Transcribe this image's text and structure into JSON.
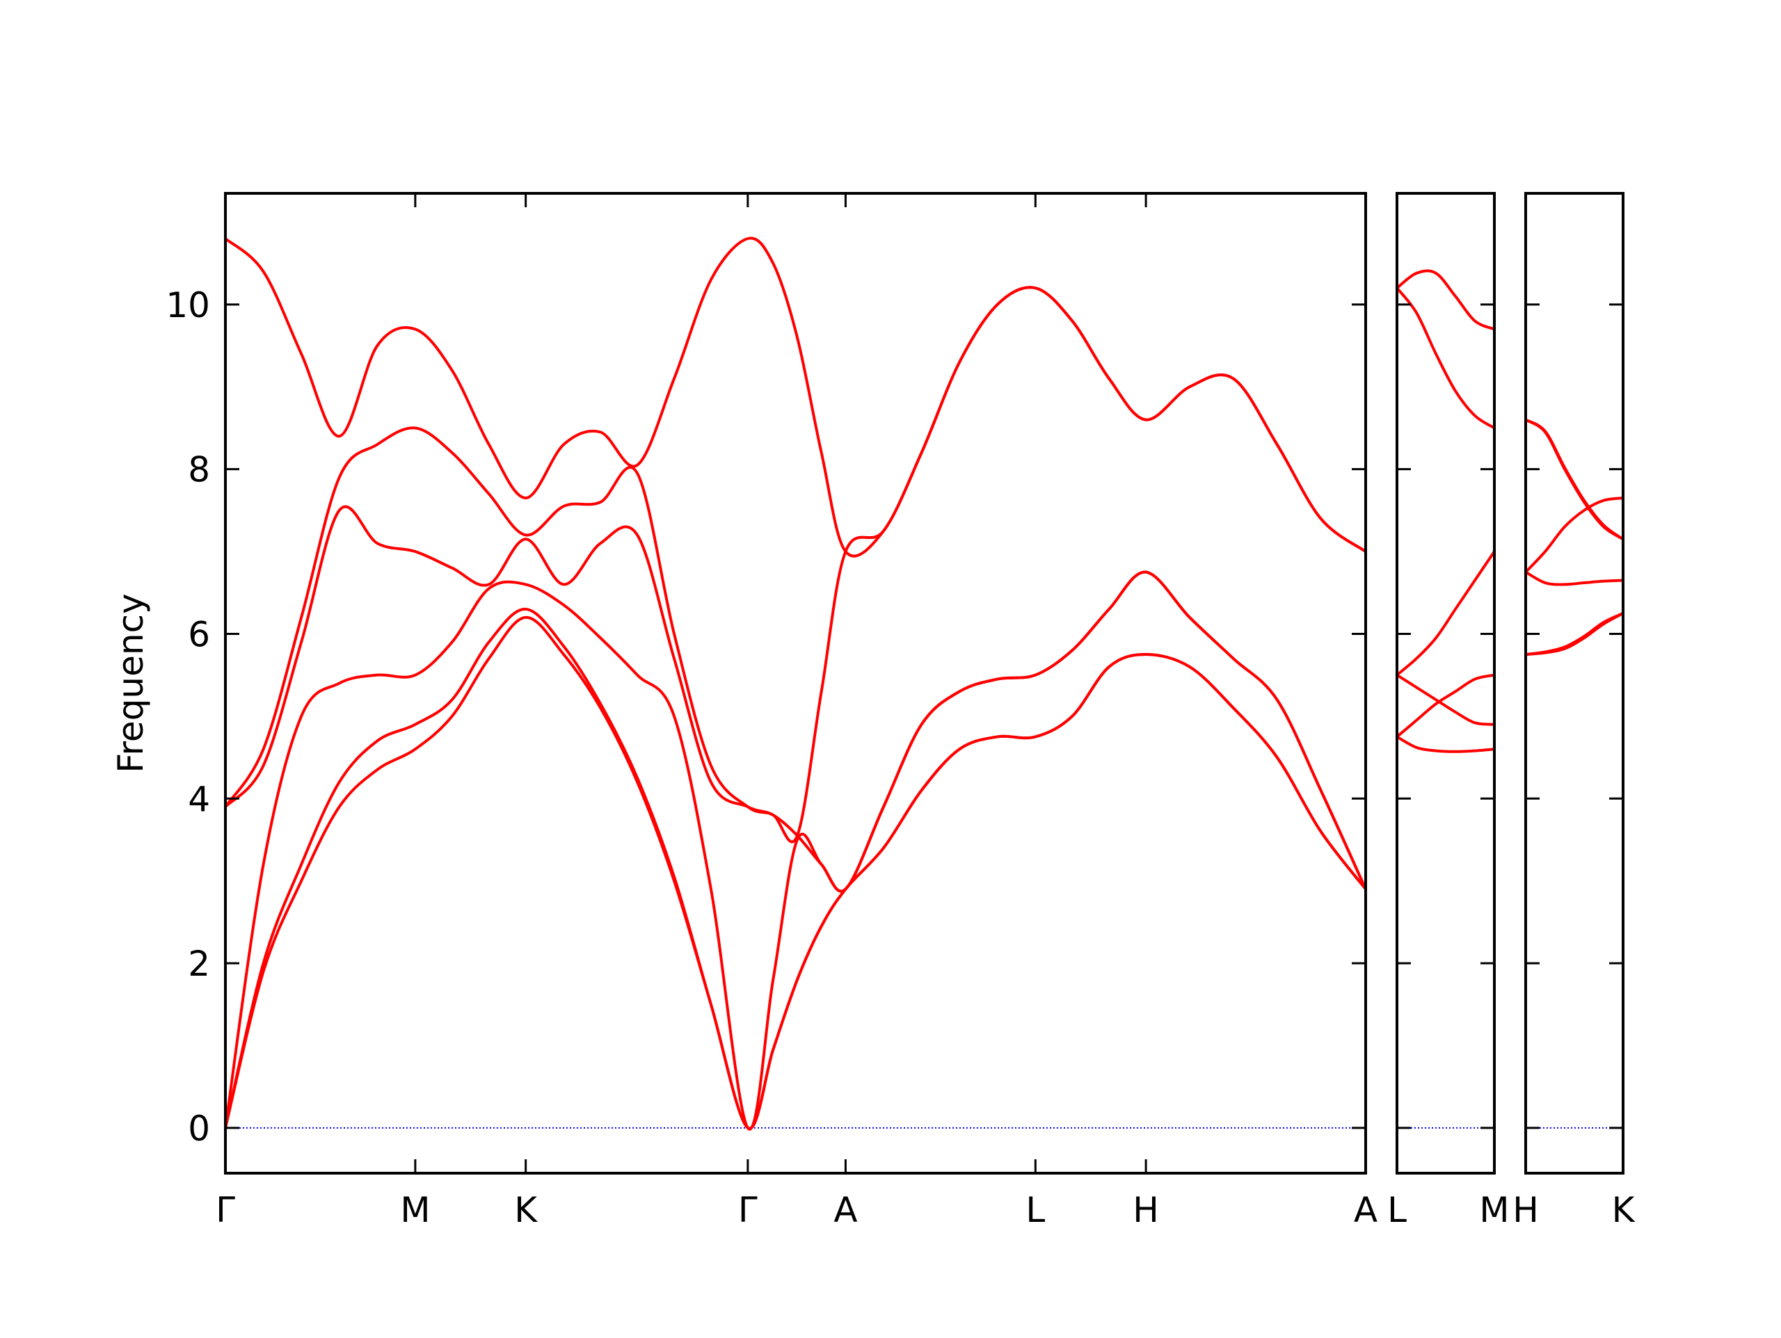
{
  "chart_data": [
    {
      "type": "line",
      "y_label": "Frequency",
      "color": "#ff0000",
      "xlim": [
        0,
        9.91
      ],
      "ylim": [
        -0.55,
        11.35
      ],
      "yticks": [
        0,
        2,
        4,
        6,
        8,
        10
      ],
      "show_ytick_labels": true,
      "xticks": [
        {
          "value": 0,
          "label": "Γ"
        },
        {
          "value": 1.65,
          "label": "M"
        },
        {
          "value": 2.61,
          "label": "K"
        },
        {
          "value": 4.54,
          "label": "Γ"
        },
        {
          "value": 5.39,
          "label": "A"
        },
        {
          "value": 7.04,
          "label": "L"
        },
        {
          "value": 8.0,
          "label": "H"
        },
        {
          "value": 9.91,
          "label": "A"
        }
      ],
      "reference_line": {
        "value": 0,
        "color": "#0000ff"
      },
      "x": [
        0,
        0.33,
        0.66,
        0.99,
        1.32,
        1.65,
        1.97,
        2.29,
        2.61,
        2.94,
        3.26,
        3.58,
        3.9,
        4.22,
        4.54,
        4.76,
        4.97,
        5.18,
        5.39,
        5.72,
        6.05,
        6.38,
        6.71,
        7.04,
        7.36,
        7.68,
        8.0,
        8.38,
        8.76,
        9.14,
        9.52,
        9.91
      ],
      "series": [
        {
          "values": [
            0,
            1.9,
            3.0,
            3.9,
            4.35,
            4.6,
            5.0,
            5.7,
            6.2,
            5.75,
            5.1,
            4.2,
            3.0,
            1.5,
            0,
            0.95,
            1.8,
            2.45,
            2.9,
            3.4,
            4.1,
            4.6,
            4.75,
            4.75,
            5.0,
            5.6,
            5.75,
            5.6,
            5.1,
            4.5,
            3.6,
            2.9
          ]
        },
        {
          "values": [
            0,
            2.0,
            3.2,
            4.2,
            4.7,
            4.9,
            5.2,
            5.9,
            6.3,
            5.85,
            5.15,
            4.25,
            3.05,
            1.5,
            0,
            0.95,
            1.8,
            2.45,
            2.9,
            3.4,
            4.1,
            4.6,
            4.75,
            4.75,
            5.0,
            5.6,
            5.75,
            5.6,
            5.1,
            4.5,
            3.6,
            2.9
          ]
        },
        {
          "values": [
            0,
            3.2,
            5.0,
            5.4,
            5.5,
            5.5,
            5.9,
            6.55,
            6.6,
            6.35,
            5.95,
            5.5,
            5.0,
            2.9,
            0,
            1.8,
            3.5,
            3.2,
            2.9,
            3.9,
            4.9,
            5.3,
            5.45,
            5.5,
            5.8,
            6.3,
            6.75,
            6.2,
            5.7,
            5.2,
            4.1,
            2.9
          ]
        },
        {
          "values": [
            3.9,
            4.4,
            5.9,
            7.5,
            7.1,
            7.0,
            6.8,
            6.6,
            7.15,
            6.6,
            7.1,
            7.2,
            5.7,
            4.2,
            3.9,
            3.8,
            3.55,
            3.2,
            2.9,
            3.9,
            4.9,
            5.3,
            5.45,
            5.5,
            5.8,
            6.3,
            6.75,
            6.2,
            5.7,
            5.2,
            4.1,
            2.9
          ]
        },
        {
          "values": [
            3.9,
            4.6,
            6.2,
            7.9,
            8.3,
            8.5,
            8.2,
            7.7,
            7.2,
            7.55,
            7.6,
            7.95,
            6.0,
            4.4,
            3.9,
            3.8,
            3.55,
            5.3,
            7.0,
            7.25,
            8.2,
            9.3,
            10.0,
            10.2,
            9.8,
            9.1,
            8.6,
            9.0,
            9.1,
            8.3,
            7.4,
            7.0
          ]
        },
        {
          "values": [
            10.8,
            10.4,
            9.4,
            8.4,
            9.5,
            9.7,
            9.2,
            8.3,
            7.65,
            8.3,
            8.45,
            8.05,
            9.1,
            10.3,
            10.8,
            10.5,
            9.6,
            8.2,
            7.0,
            7.25,
            8.2,
            9.3,
            10.0,
            10.2,
            9.8,
            9.1,
            8.6,
            9.0,
            9.1,
            8.3,
            7.4,
            7.0
          ]
        }
      ]
    },
    {
      "type": "line",
      "color": "#ff0000",
      "xlim": [
        0,
        0.85
      ],
      "ylim": [
        -0.55,
        11.35
      ],
      "yticks": [
        0,
        2,
        4,
        6,
        8,
        10
      ],
      "show_ytick_labels": false,
      "xticks": [
        {
          "value": 0,
          "label": "L"
        },
        {
          "value": 0.85,
          "label": "M"
        }
      ],
      "reference_line": {
        "value": 0,
        "color": "#0000ff"
      },
      "x": [
        0,
        0.17,
        0.34,
        0.51,
        0.68,
        0.85
      ],
      "series": [
        {
          "values": [
            4.75,
            4.62,
            4.58,
            4.57,
            4.58,
            4.6
          ]
        },
        {
          "values": [
            4.75,
            4.95,
            5.15,
            5.3,
            5.45,
            5.5
          ]
        },
        {
          "values": [
            5.5,
            5.35,
            5.2,
            5.05,
            4.92,
            4.9
          ]
        },
        {
          "values": [
            5.5,
            5.7,
            5.95,
            6.3,
            6.65,
            7.0
          ]
        },
        {
          "values": [
            10.2,
            9.9,
            9.4,
            8.95,
            8.65,
            8.5
          ]
        },
        {
          "values": [
            10.2,
            10.38,
            10.38,
            10.1,
            9.8,
            9.7
          ]
        }
      ]
    },
    {
      "type": "line",
      "color": "#ff0000",
      "xlim": [
        0,
        0.85
      ],
      "ylim": [
        -0.55,
        11.35
      ],
      "yticks": [
        0,
        2,
        4,
        6,
        8,
        10
      ],
      "show_ytick_labels": false,
      "xticks": [
        {
          "value": 0,
          "label": "H"
        },
        {
          "value": 0.85,
          "label": "K"
        }
      ],
      "reference_line": {
        "value": 0,
        "color": "#0000ff"
      },
      "x": [
        0,
        0.17,
        0.34,
        0.51,
        0.68,
        0.85
      ],
      "series": [
        {
          "values": [
            5.75,
            5.77,
            5.82,
            5.95,
            6.12,
            6.25
          ]
        },
        {
          "values": [
            5.75,
            5.78,
            5.84,
            5.97,
            6.14,
            6.25
          ]
        },
        {
          "values": [
            6.75,
            6.62,
            6.6,
            6.62,
            6.64,
            6.65
          ]
        },
        {
          "values": [
            6.75,
            7.0,
            7.3,
            7.5,
            7.62,
            7.65
          ]
        },
        {
          "values": [
            8.6,
            8.45,
            8.0,
            7.6,
            7.3,
            7.15
          ]
        },
        {
          "values": [
            8.6,
            8.46,
            8.02,
            7.62,
            7.32,
            7.15
          ]
        }
      ]
    }
  ]
}
